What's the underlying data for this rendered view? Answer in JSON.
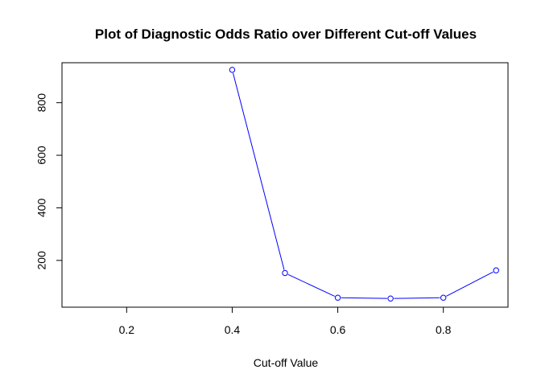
{
  "chart_data": {
    "type": "line",
    "title": "Plot of Diagnostic Odds Ratio over Different Cut-off Values",
    "xlabel": "Cut-off Value",
    "ylabel": "",
    "xlim": [
      0.0775,
      0.9225
    ],
    "ylim": [
      22,
      952
    ],
    "x_ticks": [
      0.2,
      0.4,
      0.6,
      0.8
    ],
    "x_tick_labels": [
      "0.2",
      "0.4",
      "0.6",
      "0.8"
    ],
    "y_ticks": [
      200,
      400,
      600,
      800
    ],
    "y_tick_labels": [
      "200",
      "400",
      "600",
      "800"
    ],
    "grid": false,
    "legend": "none",
    "series": [
      {
        "x": [
          0.4,
          0.5,
          0.6,
          0.7,
          0.8,
          0.9
        ],
        "y": [
          925,
          152,
          58,
          55,
          58,
          162
        ],
        "color": "#0000ff",
        "marker": "open-circle"
      }
    ]
  }
}
